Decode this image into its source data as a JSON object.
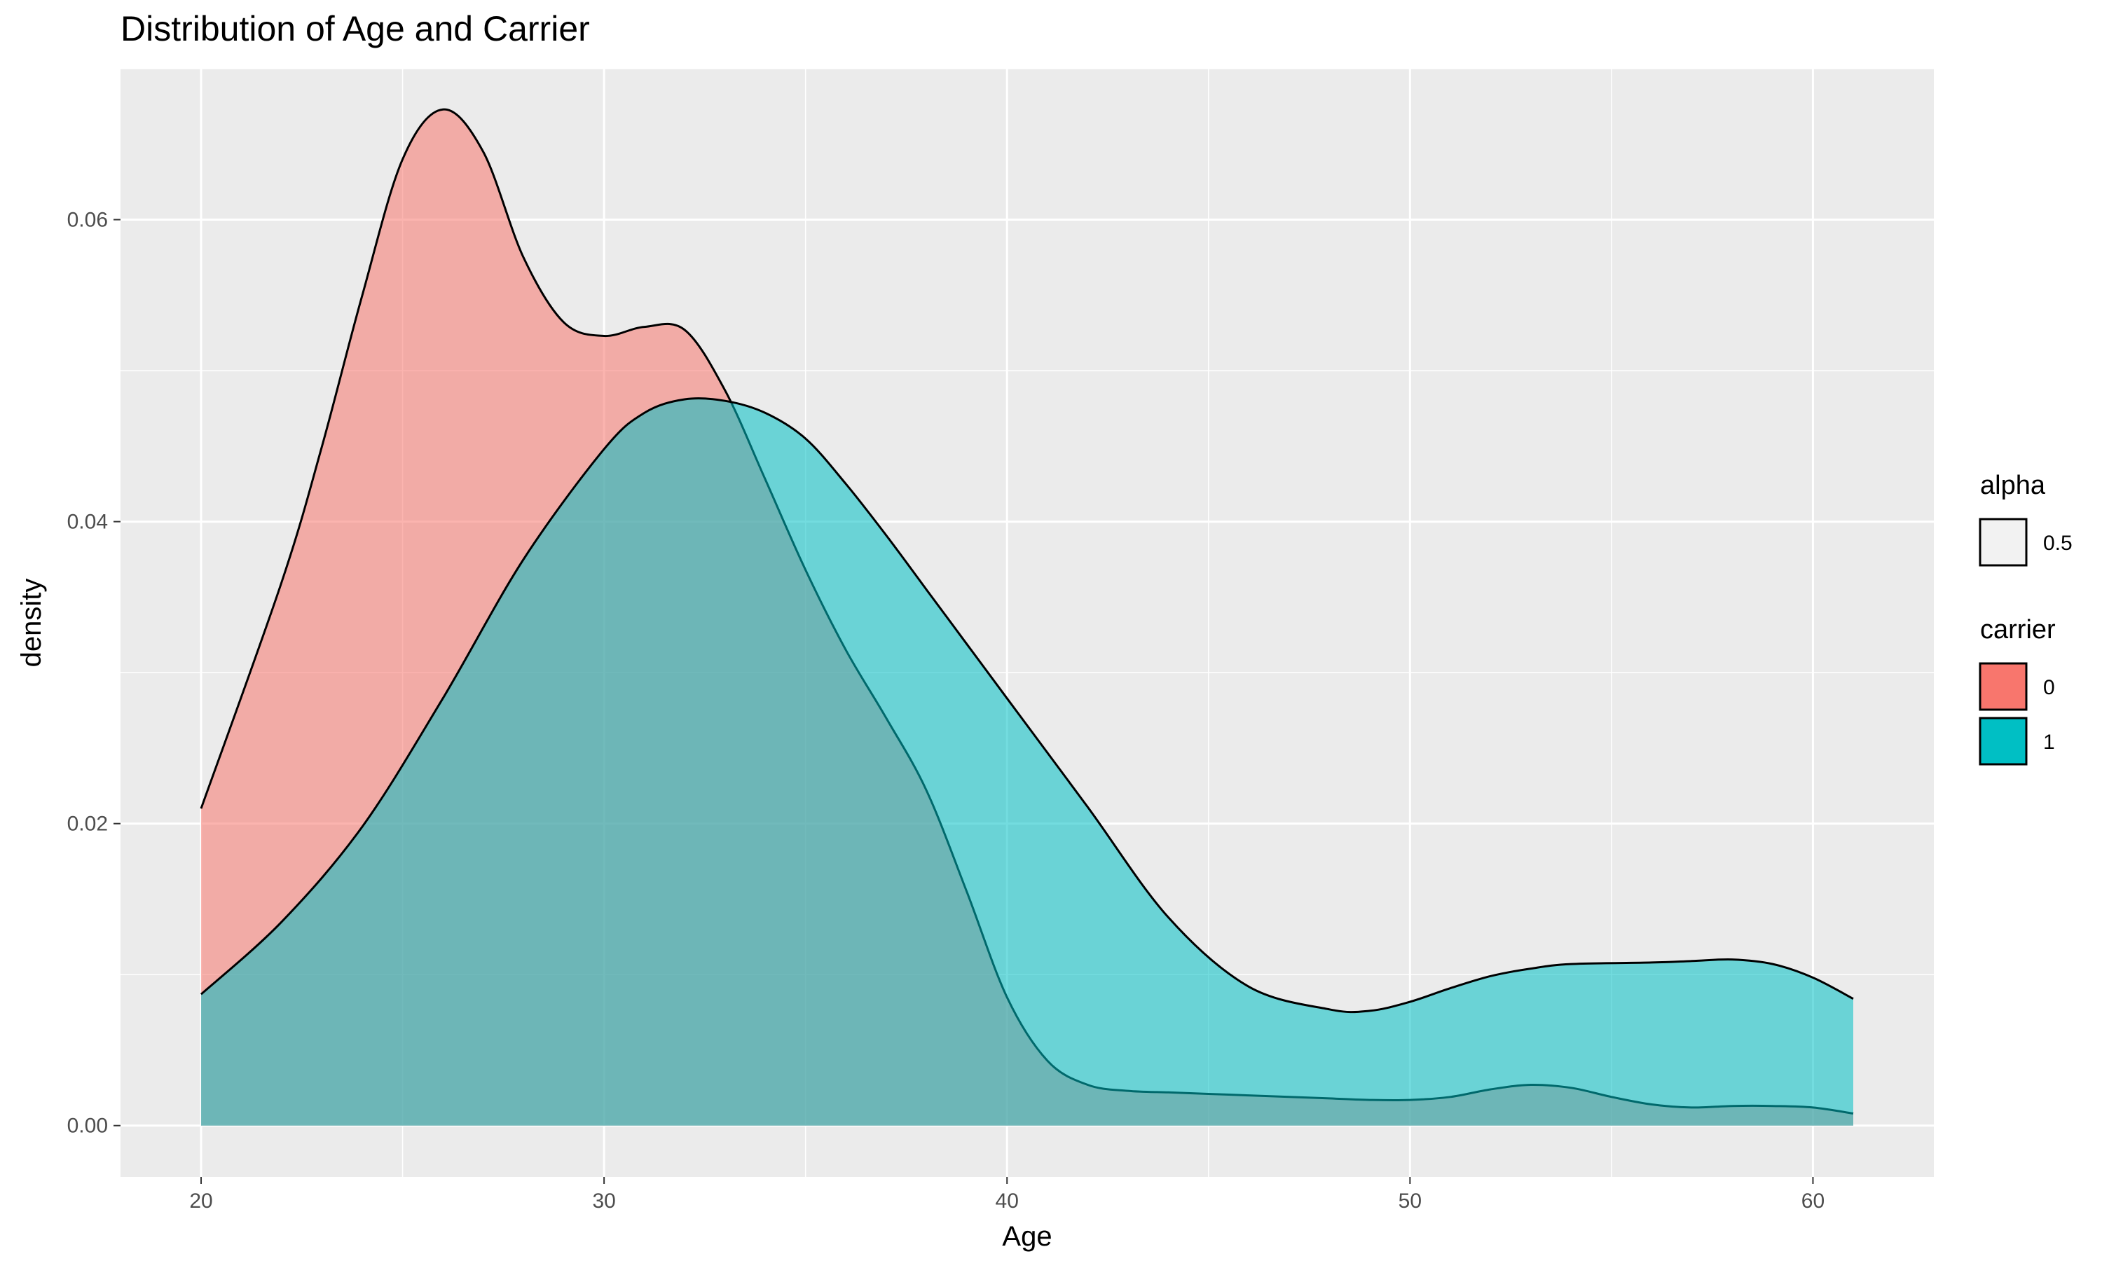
{
  "chart_data": {
    "type": "area",
    "subtype": "density",
    "title": "Distribution of Age and Carrier",
    "xlabel": "Age",
    "ylabel": "density",
    "xlim": [
      18,
      63
    ],
    "ylim": [
      -0.0034,
      0.07
    ],
    "x_ticks": [
      20,
      30,
      40,
      50,
      60
    ],
    "y_ticks": [
      0.0,
      0.02,
      0.04,
      0.06
    ],
    "y_tick_labels": [
      "0.00",
      "0.02",
      "0.04",
      "0.06"
    ],
    "grid": true,
    "legend_position": "right",
    "background": "#EBEBEB",
    "legends": [
      {
        "title": "alpha",
        "entries": [
          {
            "label": "0.5",
            "color": "#F2F2F2"
          }
        ]
      },
      {
        "title": "carrier",
        "entries": [
          {
            "label": "0",
            "color": "#F8766D"
          },
          {
            "label": "1",
            "color": "#00BFC4"
          }
        ]
      }
    ],
    "series": [
      {
        "name": "0",
        "color": "#F8766D",
        "x": [
          20,
          22,
          23,
          24,
          25,
          26,
          27,
          28,
          29,
          30,
          31,
          32,
          33,
          34,
          35,
          36,
          37,
          38,
          39,
          40,
          41,
          42,
          43,
          44,
          45,
          46,
          47,
          48,
          49,
          50,
          51,
          52,
          53,
          54,
          55,
          56,
          57,
          58,
          59,
          60,
          61
        ],
        "y": [
          0.021,
          0.036,
          0.045,
          0.055,
          0.064,
          0.0673,
          0.0645,
          0.0575,
          0.0532,
          0.0523,
          0.0529,
          0.0527,
          0.0487,
          0.0428,
          0.0368,
          0.0315,
          0.027,
          0.0222,
          0.0155,
          0.0085,
          0.0043,
          0.0027,
          0.0023,
          0.0022,
          0.0021,
          0.002,
          0.0019,
          0.0018,
          0.0017,
          0.0017,
          0.0019,
          0.0024,
          0.0027,
          0.0025,
          0.0019,
          0.0014,
          0.0012,
          0.0013,
          0.0013,
          0.0012,
          0.0008
        ]
      },
      {
        "name": "1",
        "color": "#00BFC4",
        "x": [
          20,
          22,
          24,
          26,
          28,
          30,
          31,
          32,
          33,
          34,
          35,
          36,
          37,
          38,
          39,
          40,
          42,
          44,
          46,
          48,
          49,
          50,
          51,
          52,
          53,
          54,
          56,
          57,
          58,
          59,
          60,
          61
        ],
        "y": [
          0.0087,
          0.0135,
          0.0198,
          0.0283,
          0.0375,
          0.0448,
          0.0472,
          0.0481,
          0.048,
          0.0472,
          0.0455,
          0.0425,
          0.0391,
          0.0355,
          0.0319,
          0.0283,
          0.0211,
          0.0138,
          0.0092,
          0.0077,
          0.0076,
          0.0082,
          0.0091,
          0.0099,
          0.0104,
          0.0107,
          0.0108,
          0.0109,
          0.011,
          0.0107,
          0.0098,
          0.0084
        ]
      }
    ]
  }
}
